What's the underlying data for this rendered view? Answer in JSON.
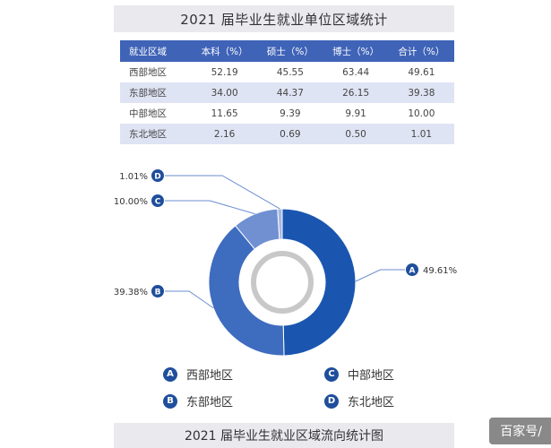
{
  "title": "2021 届毕业生就业单位区域统计",
  "footer_title": "2021 届毕业生就业区域流向统计图",
  "watermark": "百家号/",
  "table": {
    "headers": [
      "就业区域",
      "本科（%）",
      "硕士（%）",
      "博士（%）",
      "合计（%）"
    ],
    "rows": [
      [
        "西部地区",
        "52.19",
        "45.55",
        "63.44",
        "49.61"
      ],
      [
        "东部地区",
        "34.00",
        "44.37",
        "26.15",
        "39.38"
      ],
      [
        "中部地区",
        "11.65",
        "9.39",
        "9.91",
        "10.00"
      ],
      [
        "东北地区",
        "2.16",
        "0.69",
        "0.50",
        "1.01"
      ]
    ]
  },
  "colors": {
    "header_bg": "#3f63b7",
    "row_alt": "#dfe4f4",
    "west": "#1a56b0",
    "east": "#3e6cbf",
    "central": "#7090d2",
    "northeast": "#a7b8e3",
    "ring": "#c8c8c8",
    "badge": "#1f4e9c",
    "leader": "#6b8ed2"
  },
  "chart_data": {
    "type": "pie",
    "donut": true,
    "categories": [
      "西部地区",
      "东部地区",
      "中部地区",
      "东北地区"
    ],
    "values": [
      49.61,
      39.38,
      10.0,
      1.01
    ],
    "letters": [
      "A",
      "B",
      "C",
      "D"
    ],
    "value_labels": [
      "49.61%",
      "39.38%",
      "10.00%",
      "1.01%"
    ]
  },
  "legend": [
    {
      "letter": "A",
      "label": "西部地区"
    },
    {
      "letter": "C",
      "label": "中部地区"
    },
    {
      "letter": "B",
      "label": "东部地区"
    },
    {
      "letter": "D",
      "label": "东北地区"
    }
  ]
}
